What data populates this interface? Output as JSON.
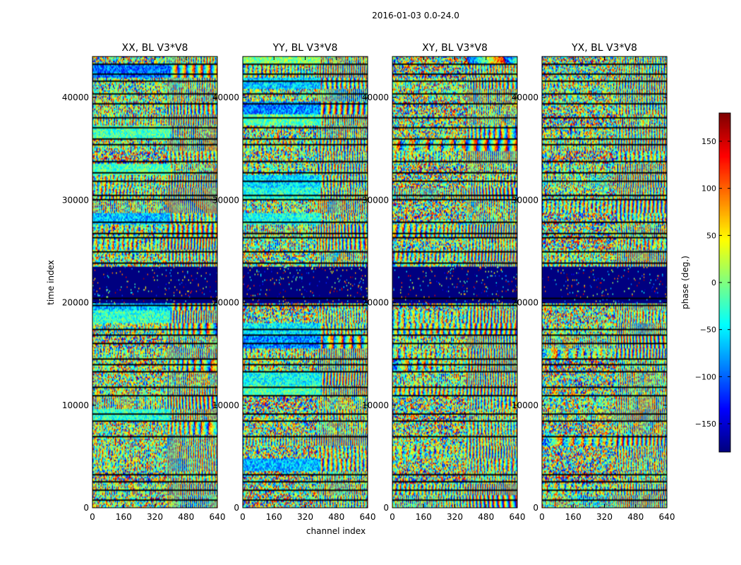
{
  "figure": {
    "suptitle": "2016-01-03 0.0-24.0"
  },
  "chart_data": {
    "type": "heatmap",
    "xlabel": "channel index",
    "ylabel": "time index",
    "xlim": [
      0,
      640
    ],
    "ylim": [
      0,
      44000
    ],
    "xticks": [
      0,
      160,
      320,
      480,
      640
    ],
    "yticks": [
      0,
      10000,
      20000,
      30000,
      40000
    ],
    "colormap": "jet",
    "colorbar": {
      "label": "phase (deg.)",
      "range": [
        -180,
        180
      ],
      "ticks": [
        -150,
        -100,
        -50,
        0,
        50,
        100,
        150
      ],
      "tick_labels": [
        "−150",
        "−100",
        "−50",
        "0",
        "50",
        "100",
        "150"
      ]
    },
    "panels": [
      {
        "title": "XX, BL V3*V8",
        "polarization": "XX"
      },
      {
        "title": "YY, BL V3*V8",
        "polarization": "YY"
      },
      {
        "title": "XY, BL V3*V8",
        "polarization": "XY"
      },
      {
        "title": "YX, BL V3*V8",
        "polarization": "YX"
      }
    ],
    "flagged_band": {
      "from": 20000,
      "to": 23500,
      "value": -180
    },
    "gap_rows": [
      700,
      1700,
      2400,
      3600,
      4600,
      6000,
      7000,
      8000,
      8600,
      10300,
      11300,
      12200,
      13500,
      14000,
      16100,
      17200,
      17700,
      19100,
      20100,
      23600,
      24200,
      26600,
      27200,
      28000,
      29500,
      30100,
      30700,
      32300,
      33000,
      34900,
      35500,
      37000,
      40700,
      41400,
      42300,
      43300
    ]
  }
}
